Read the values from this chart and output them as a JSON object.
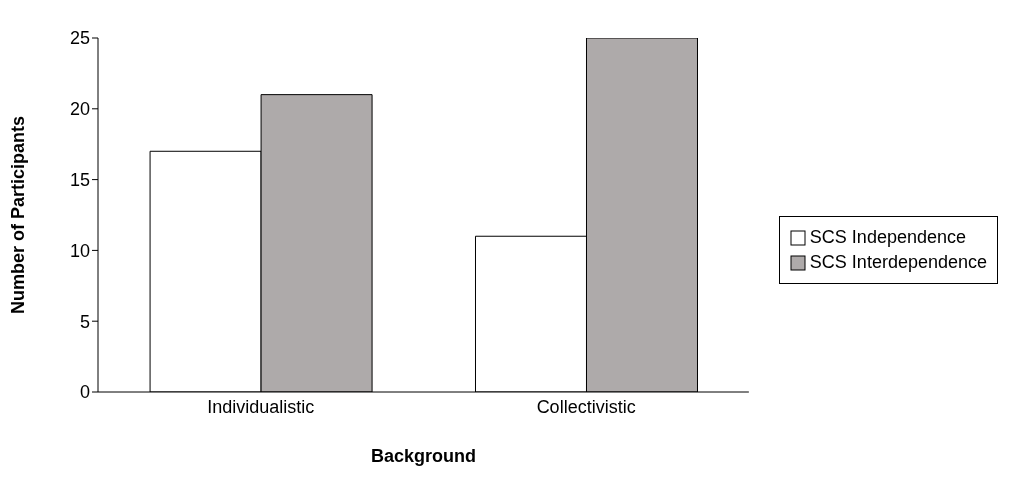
{
  "chart_data": {
    "type": "bar",
    "xlabel": "Background",
    "ylabel": "Number of Participants",
    "categories": [
      "Individualistic",
      "Collectivistic"
    ],
    "series": [
      {
        "name": "SCS Independence",
        "color": "#ffffff",
        "values": [
          17,
          11
        ]
      },
      {
        "name": "SCS Interdependence",
        "color": "#aeaaaa",
        "values": [
          21,
          25
        ]
      }
    ],
    "ylim": [
      0,
      25
    ],
    "yticks": [
      0,
      5,
      10,
      15,
      20,
      25
    ],
    "legend": "right"
  }
}
